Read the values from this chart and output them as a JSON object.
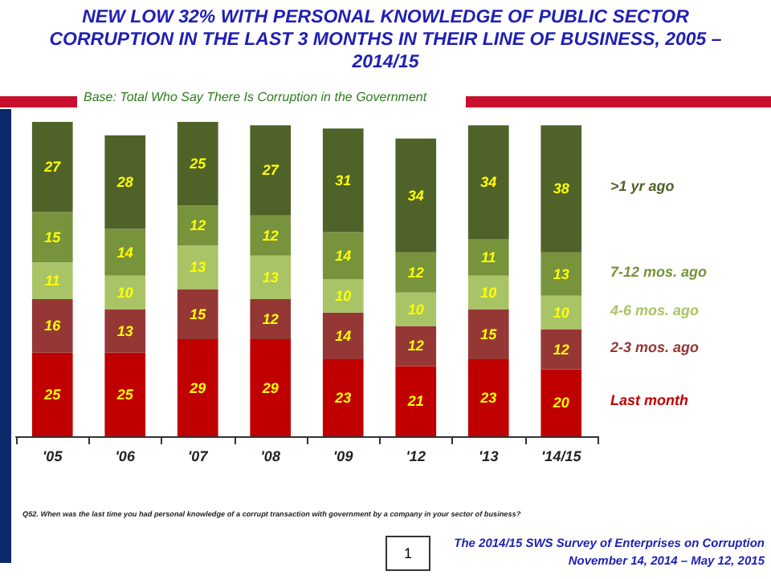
{
  "chart_data": {
    "type": "bar",
    "stacked": true,
    "data_labels": true,
    "title": "NEW LOW 32% WITH PERSONAL KNOWLEDGE OF PUBLIC SECTOR CORRUPTION IN THE LAST 3 MONTHS IN THEIR  LINE OF BUSINESS, 2005 – 2014/15",
    "subtitle": "Base: Total Who Say There Is Corruption in the Government",
    "categories": [
      "'05",
      "'06",
      "'07",
      "'08",
      "'09",
      "'12",
      "'13",
      "'14/15"
    ],
    "series": [
      {
        "name": "Last month",
        "color": "#c00000",
        "values": [
          25,
          25,
          29,
          29,
          23,
          21,
          23,
          20
        ]
      },
      {
        "name": "2-3 mos. ago",
        "color": "#953735",
        "values": [
          16,
          13,
          15,
          12,
          14,
          12,
          15,
          12
        ]
      },
      {
        "name": "4-6 mos. ago",
        "color": "#a9c466",
        "values": [
          11,
          10,
          13,
          13,
          10,
          10,
          10,
          10
        ]
      },
      {
        "name": "7-12 mos. ago",
        "color": "#77933c",
        "values": [
          15,
          14,
          12,
          12,
          14,
          12,
          11,
          13
        ]
      },
      {
        "name": ">1 yr ago",
        "color": "#4f6228",
        "values": [
          27,
          28,
          25,
          27,
          31,
          34,
          34,
          38
        ]
      }
    ],
    "annotations": [
      "Q52. When was the last time you had personal knowledge of a corrupt transaction with government by a company in your sector of business?",
      "1",
      "The 2014/15 SWS Survey of Enterprises on Corruption",
      "November 14, 2014 – May  12, 2015"
    ]
  }
}
